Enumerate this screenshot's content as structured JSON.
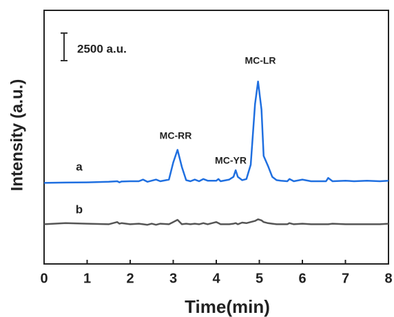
{
  "chart_data": {
    "type": "line",
    "x_label": "Time(min)",
    "y_label": "Intensity (a.u.)",
    "x": [
      0,
      0.5,
      1,
      1.5,
      1.7,
      1.75,
      1.8,
      2,
      2.2,
      2.3,
      2.4,
      2.5,
      2.6,
      2.7,
      2.9,
      3.0,
      3.1,
      3.2,
      3.3,
      3.4,
      3.5,
      3.6,
      3.7,
      3.8,
      4.0,
      4.05,
      4.1,
      4.3,
      4.4,
      4.45,
      4.5,
      4.6,
      4.7,
      4.8,
      4.9,
      4.97,
      5.05,
      5.1,
      5.2,
      5.3,
      5.4,
      5.5,
      5.65,
      5.7,
      5.8,
      6.0,
      6.2,
      6.55,
      6.6,
      6.7,
      7.0,
      7.2,
      7.5,
      7.8,
      8.0
    ],
    "series": [
      {
        "name": "a",
        "color": "#1f6fe0",
        "values": [
          7350,
          7380,
          7400,
          7450,
          7500,
          7400,
          7480,
          7500,
          7500,
          7650,
          7450,
          7550,
          7650,
          7500,
          7650,
          9200,
          10350,
          8800,
          7600,
          7500,
          7650,
          7500,
          7700,
          7550,
          7550,
          7700,
          7500,
          7650,
          7900,
          8500,
          7900,
          7600,
          7700,
          9000,
          14500,
          16550,
          14000,
          9800,
          8900,
          7900,
          7600,
          7550,
          7500,
          7700,
          7500,
          7650,
          7500,
          7500,
          7800,
          7500,
          7550,
          7500,
          7550,
          7500,
          7550
        ]
      },
      {
        "name": "b",
        "color": "#555555",
        "values": [
          3600,
          3700,
          3650,
          3600,
          3800,
          3650,
          3700,
          3600,
          3650,
          3600,
          3550,
          3650,
          3550,
          3650,
          3600,
          3800,
          4000,
          3600,
          3650,
          3600,
          3650,
          3600,
          3700,
          3600,
          3800,
          3700,
          3600,
          3600,
          3650,
          3700,
          3600,
          3750,
          3700,
          3800,
          3900,
          4050,
          3950,
          3800,
          3700,
          3650,
          3600,
          3600,
          3600,
          3700,
          3600,
          3650,
          3600,
          3600,
          3600,
          3650,
          3600,
          3600,
          3600,
          3600,
          3650
        ]
      }
    ],
    "annotations": [
      "MC-RR",
      "MC-YR",
      "MC-LR"
    ],
    "scale_bar": {
      "value": 2500,
      "label": "2500 a.u."
    },
    "xlim": [
      0,
      8
    ],
    "xticks": [
      0,
      1,
      2,
      3,
      4,
      5,
      6,
      7,
      8
    ],
    "ylim": [
      0,
      23000
    ]
  }
}
